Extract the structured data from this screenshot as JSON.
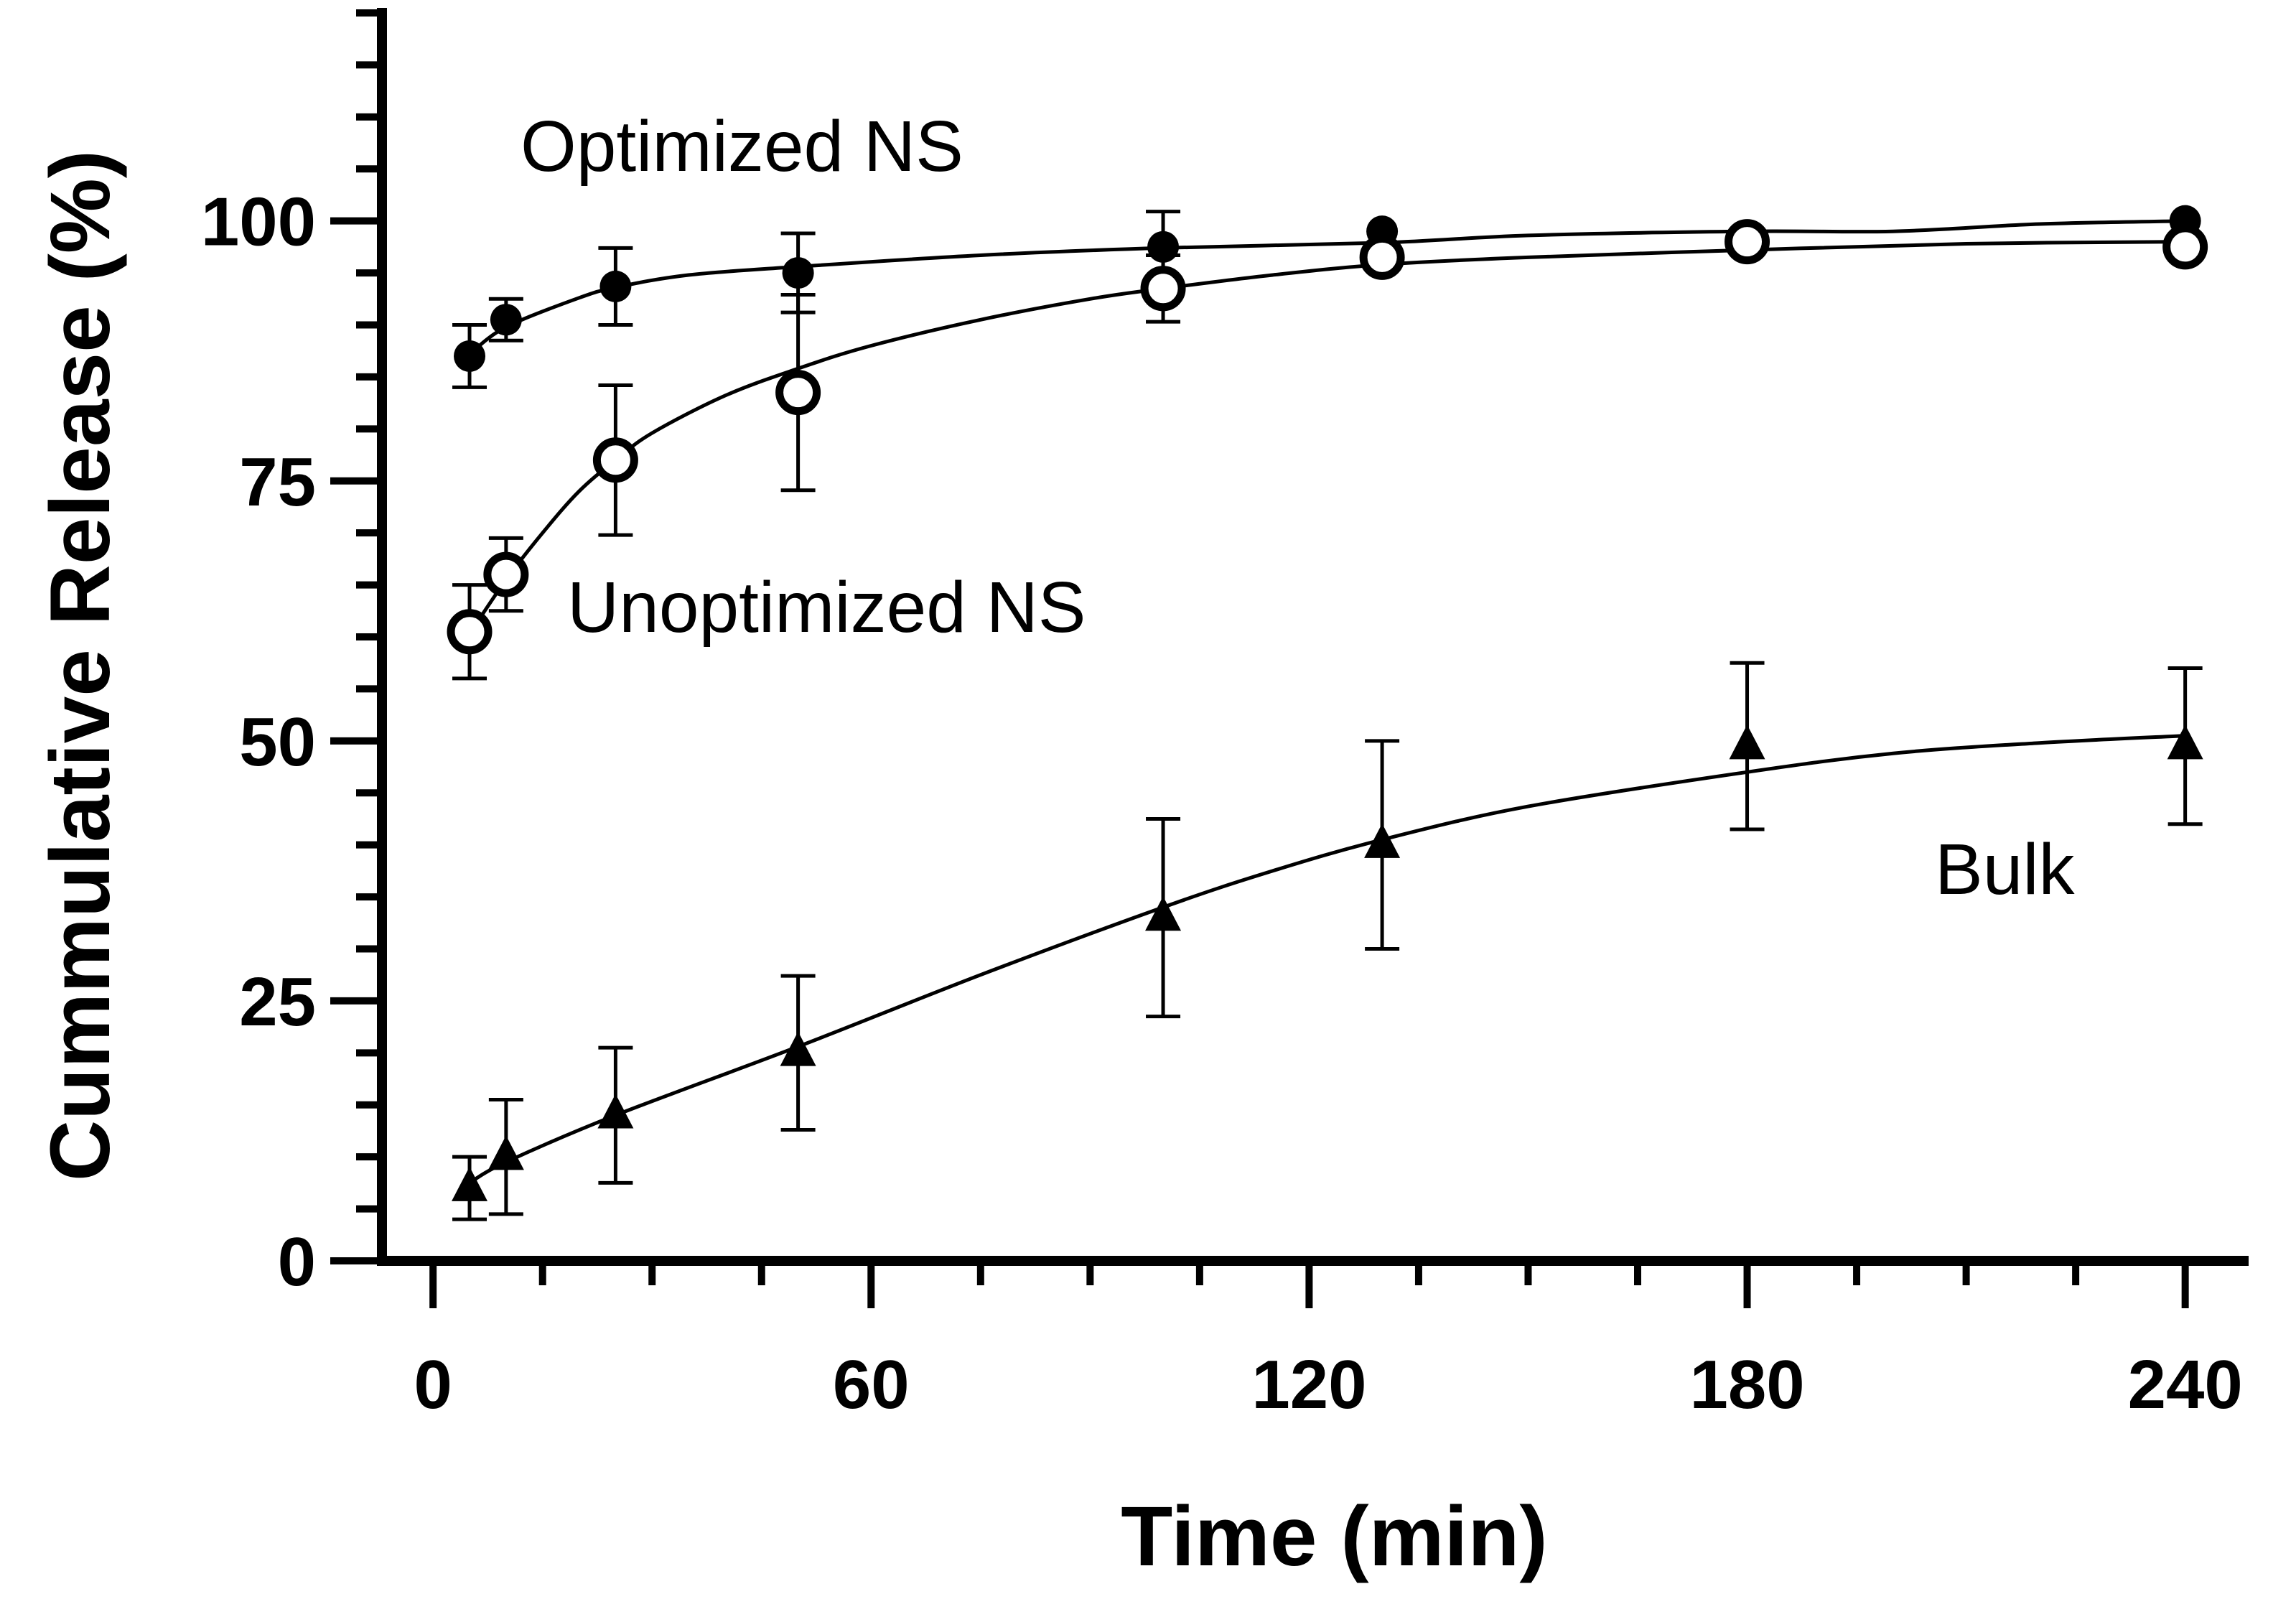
{
  "chart_data": {
    "type": "line",
    "title": "",
    "xlabel": "Time (min)",
    "ylabel": "Cummulative Release (%)",
    "xlim": [
      -7,
      248
    ],
    "ylim": [
      0,
      120
    ],
    "x_ticks": [
      0,
      60,
      120,
      180,
      240
    ],
    "x_tick_labels": [
      "0",
      "60",
      "120",
      "180",
      "240"
    ],
    "x_minor_step": 15,
    "y_ticks": [
      0,
      25,
      50,
      75,
      100
    ],
    "y_tick_labels": [
      "0",
      "25",
      "50",
      "75",
      "100"
    ],
    "y_minor_step": 5,
    "grid": false,
    "legend": "none (series labelled by annotations)",
    "series": [
      {
        "name": "Optimized NS",
        "label": "Optimized NS",
        "marker": "filled-circle",
        "x": [
          5,
          10,
          25,
          50,
          100,
          130,
          180,
          240
        ],
        "values": [
          87,
          90.5,
          93.7,
          95,
          97.5,
          99,
          98,
          100
        ],
        "error": [
          3,
          2,
          3.7,
          3.8,
          3.4,
          0,
          0,
          0
        ],
        "fit_x": [
          5,
          10,
          20,
          25,
          35,
          50,
          75,
          100,
          130,
          150,
          180,
          200,
          220,
          240
        ],
        "fit_values": [
          87.2,
          89.8,
          92.6,
          93.6,
          94.8,
          95.6,
          96.7,
          97.4,
          97.9,
          98.6,
          99.0,
          99.0,
          99.7,
          100.0
        ]
      },
      {
        "name": "Unoptimized NS",
        "label": "Unoptimized NS",
        "marker": "open-circle",
        "x": [
          5,
          10,
          25,
          50,
          100,
          130,
          180,
          240
        ],
        "values": [
          60.5,
          66,
          77,
          83.5,
          93.5,
          96.5,
          98,
          97.5
        ],
        "error": [
          4.5,
          3.5,
          7.2,
          9.4,
          3.2,
          0,
          0,
          0
        ],
        "fit_x": [
          5,
          10,
          15,
          20,
          25,
          30,
          40,
          50,
          60,
          75,
          90,
          100,
          115,
          130,
          150,
          180,
          210,
          240
        ],
        "fit_values": [
          60.3,
          65.5,
          70.0,
          74.0,
          77.0,
          79.6,
          83.2,
          85.8,
          88.0,
          90.5,
          92.5,
          93.5,
          94.8,
          95.8,
          96.5,
          97.2,
          97.8,
          98.0
        ]
      },
      {
        "name": "Bulk",
        "label": "Bulk",
        "marker": "filled-triangle",
        "x": [
          5,
          10,
          25,
          50,
          100,
          130,
          180,
          240
        ],
        "values": [
          7,
          10,
          14,
          20,
          33,
          40,
          49.5,
          49.5
        ],
        "error": [
          3,
          5.5,
          6.5,
          7.4,
          9.5,
          10,
          8,
          7.5
        ],
        "fit_x": [
          5,
          10,
          25,
          50,
          75,
          100,
          115,
          130,
          150,
          180,
          200,
          220,
          240
        ],
        "fit_values": [
          7.5,
          9.5,
          14.0,
          20.6,
          27.5,
          34.0,
          37.5,
          40.5,
          43.7,
          47.0,
          48.8,
          49.8,
          50.5
        ]
      }
    ]
  }
}
